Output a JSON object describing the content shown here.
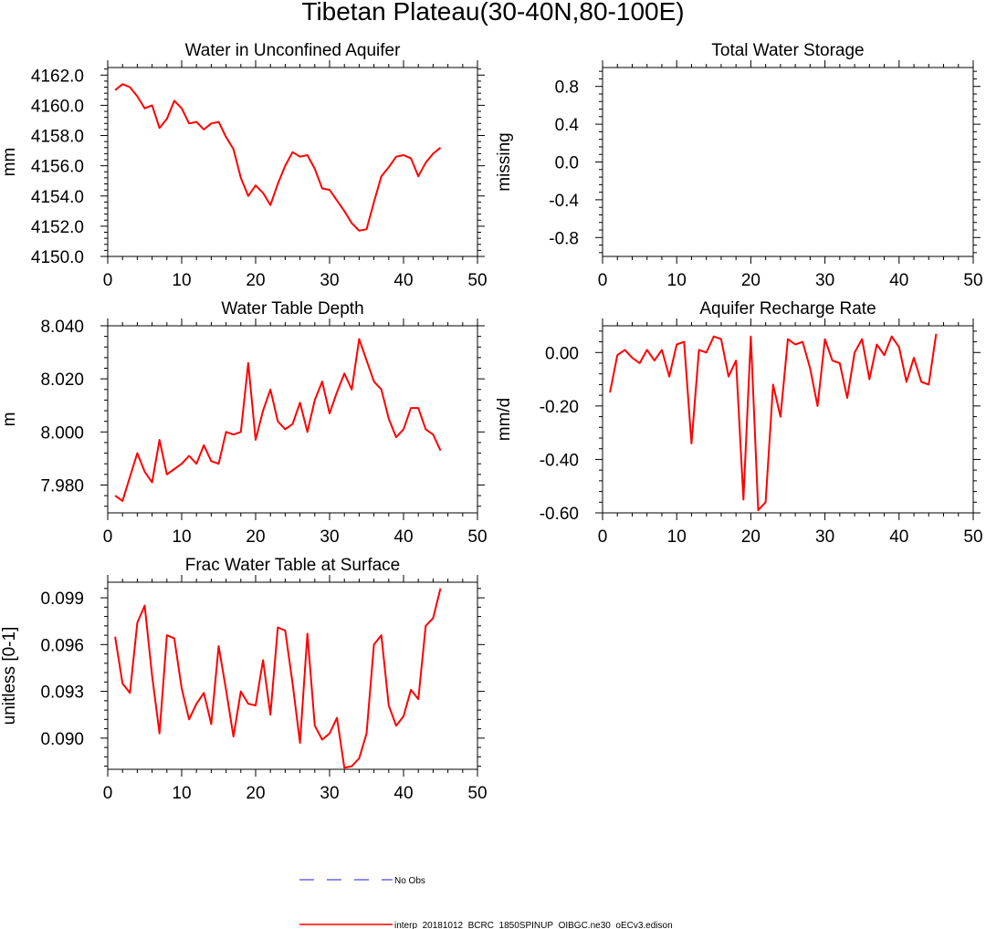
{
  "figure": {
    "title": "Tibetan Plateau(30-40N,80-100E)"
  },
  "legend": {
    "entries": [
      {
        "label": "No Obs",
        "color": "#6a6ae6",
        "style": "dashed"
      },
      {
        "label": "interp_20181012_BCRC_1850SPINUP_OIBGC.ne30_oECv3.edison",
        "color": "#ff0000",
        "style": "solid"
      }
    ]
  },
  "chart_data": [
    {
      "type": "line",
      "title": "Water in Unconfined Aquifer",
      "xlabel": "",
      "ylabel": "mm",
      "xlim": [
        0,
        50
      ],
      "ylim": [
        4150,
        4162.5
      ],
      "xticks": [
        "0",
        "10",
        "20",
        "30",
        "40",
        "50"
      ],
      "xtick_values": [
        0,
        10,
        20,
        30,
        40,
        50
      ],
      "yticks": [
        "4150.0",
        "4152.0",
        "4154.0",
        "4156.0",
        "4158.0",
        "4160.0",
        "4162.0"
      ],
      "ytick_values": [
        4150,
        4152,
        4154,
        4156,
        4158,
        4160,
        4162
      ],
      "color": "#ff0000",
      "series": [
        {
          "x": [
            1,
            2,
            3,
            4,
            5,
            6,
            7,
            8,
            9,
            10,
            11,
            12,
            13,
            14,
            15,
            16,
            17,
            18,
            19,
            20,
            21,
            22,
            23,
            24,
            25,
            26,
            27,
            28,
            29,
            30,
            31,
            32,
            33,
            34,
            35,
            36,
            37,
            38,
            39,
            40,
            41,
            42,
            43,
            44,
            45
          ],
          "values": [
            4161.0,
            4161.4,
            4161.2,
            4160.6,
            4159.8,
            4160.0,
            4158.5,
            4159.1,
            4160.3,
            4159.8,
            4158.8,
            4158.9,
            4158.4,
            4158.8,
            4158.9,
            4157.9,
            4157.1,
            4155.2,
            4154.0,
            4154.7,
            4154.2,
            4153.4,
            4154.8,
            4156.0,
            4156.9,
            4156.6,
            4156.7,
            4155.8,
            4154.5,
            4154.4,
            4153.7,
            4153.0,
            4152.2,
            4151.7,
            4151.8,
            4153.6,
            4155.3,
            4155.9,
            4156.6,
            4156.7,
            4156.5,
            4155.3,
            4156.2,
            4156.8,
            4157.2
          ]
        }
      ]
    },
    {
      "type": "line",
      "title": "Total Water Storage",
      "xlabel": "",
      "ylabel": "missing",
      "xlim": [
        0,
        50
      ],
      "ylim": [
        -1,
        1
      ],
      "xticks": [
        "0",
        "10",
        "20",
        "30",
        "40",
        "50"
      ],
      "xtick_values": [
        0,
        10,
        20,
        30,
        40,
        50
      ],
      "yticks": [
        "-0.8",
        "-0.4",
        "0.0",
        "0.4",
        "0.8"
      ],
      "ytick_values": [
        -0.8,
        -0.4,
        0.0,
        0.4,
        0.8
      ],
      "color": "#ff0000",
      "series": []
    },
    {
      "type": "line",
      "title": "Water Table Depth",
      "xlabel": "",
      "ylabel": "m",
      "xlim": [
        0,
        50
      ],
      "ylim": [
        7.9695,
        8.04
      ],
      "xticks": [
        "0",
        "10",
        "20",
        "30",
        "40",
        "50"
      ],
      "xtick_values": [
        0,
        10,
        20,
        30,
        40,
        50
      ],
      "yticks": [
        "7.980",
        "8.000",
        "8.020",
        "8.040"
      ],
      "ytick_values": [
        7.98,
        8.0,
        8.02,
        8.04
      ],
      "color": "#ff0000",
      "series": [
        {
          "x": [
            1,
            2,
            3,
            4,
            5,
            6,
            7,
            8,
            9,
            10,
            11,
            12,
            13,
            14,
            15,
            16,
            17,
            18,
            19,
            20,
            21,
            22,
            23,
            24,
            25,
            26,
            27,
            28,
            29,
            30,
            31,
            32,
            33,
            34,
            35,
            36,
            37,
            38,
            39,
            40,
            41,
            42,
            43,
            44,
            45
          ],
          "values": [
            7.976,
            7.974,
            7.983,
            7.992,
            7.985,
            7.981,
            7.997,
            7.984,
            7.986,
            7.988,
            7.991,
            7.988,
            7.995,
            7.989,
            7.988,
            8.0,
            7.999,
            8.0,
            8.026,
            7.997,
            8.008,
            8.016,
            8.004,
            8.001,
            8.003,
            8.011,
            8.0,
            8.012,
            8.019,
            8.007,
            8.015,
            8.022,
            8.016,
            8.035,
            8.027,
            8.019,
            8.016,
            8.005,
            7.998,
            8.001,
            8.009,
            8.009,
            8.001,
            7.999,
            7.993
          ]
        }
      ]
    },
    {
      "type": "line",
      "title": "Aquifer Recharge Rate",
      "xlabel": "",
      "ylabel": "mm/d",
      "xlim": [
        0,
        50
      ],
      "ylim": [
        -0.6,
        0.1
      ],
      "xticks": [
        "0",
        "10",
        "20",
        "30",
        "40",
        "50"
      ],
      "xtick_values": [
        0,
        10,
        20,
        30,
        40,
        50
      ],
      "yticks": [
        "-0.60",
        "-0.40",
        "-0.20",
        "0.00"
      ],
      "ytick_values": [
        -0.6,
        -0.4,
        -0.2,
        0.0
      ],
      "color": "#ff0000",
      "series": [
        {
          "x": [
            1,
            2,
            3,
            4,
            5,
            6,
            7,
            8,
            9,
            10,
            11,
            12,
            13,
            14,
            15,
            16,
            17,
            18,
            19,
            20,
            21,
            22,
            23,
            24,
            25,
            26,
            27,
            28,
            29,
            30,
            31,
            32,
            33,
            34,
            35,
            36,
            37,
            38,
            39,
            40,
            41,
            42,
            43,
            44,
            45
          ],
          "values": [
            -0.15,
            -0.01,
            0.01,
            -0.02,
            -0.04,
            0.01,
            -0.03,
            0.01,
            -0.09,
            0.03,
            0.04,
            -0.34,
            0.01,
            0.0,
            0.06,
            0.05,
            -0.09,
            -0.03,
            -0.55,
            0.06,
            -0.59,
            -0.56,
            -0.12,
            -0.24,
            0.05,
            0.03,
            0.04,
            -0.06,
            -0.2,
            0.05,
            -0.03,
            -0.04,
            -0.17,
            0.0,
            0.05,
            -0.1,
            0.03,
            -0.01,
            0.06,
            0.02,
            -0.11,
            -0.02,
            -0.11,
            -0.12,
            0.07
          ]
        }
      ]
    },
    {
      "type": "line",
      "title": "Frac Water Table at Surface",
      "xlabel": "",
      "ylabel": "unitless [0-1]",
      "xlim": [
        0,
        50
      ],
      "ylim": [
        0.088,
        0.1
      ],
      "xticks": [
        "0",
        "10",
        "20",
        "30",
        "40",
        "50"
      ],
      "xtick_values": [
        0,
        10,
        20,
        30,
        40,
        50
      ],
      "yticks": [
        "0.090",
        "0.093",
        "0.096",
        "0.099"
      ],
      "ytick_values": [
        0.09,
        0.093,
        0.096,
        0.099
      ],
      "color": "#ff0000",
      "series": [
        {
          "x": [
            1,
            2,
            3,
            4,
            5,
            6,
            7,
            8,
            9,
            10,
            11,
            12,
            13,
            14,
            15,
            16,
            17,
            18,
            19,
            20,
            21,
            22,
            23,
            24,
            25,
            26,
            27,
            28,
            29,
            30,
            31,
            32,
            33,
            34,
            35,
            36,
            37,
            38,
            39,
            40,
            41,
            42,
            43,
            44,
            45
          ],
          "values": [
            0.0965,
            0.0935,
            0.0929,
            0.0974,
            0.0985,
            0.094,
            0.0903,
            0.0966,
            0.0964,
            0.0932,
            0.0912,
            0.0922,
            0.0929,
            0.0909,
            0.0959,
            0.0931,
            0.0901,
            0.093,
            0.0922,
            0.0921,
            0.095,
            0.0915,
            0.0971,
            0.0969,
            0.0935,
            0.0897,
            0.0967,
            0.0908,
            0.0899,
            0.0903,
            0.0913,
            0.0881,
            0.0882,
            0.0887,
            0.0903,
            0.096,
            0.0966,
            0.0921,
            0.0908,
            0.0914,
            0.0931,
            0.0925,
            0.0972,
            0.0977,
            0.0996
          ]
        }
      ]
    }
  ]
}
